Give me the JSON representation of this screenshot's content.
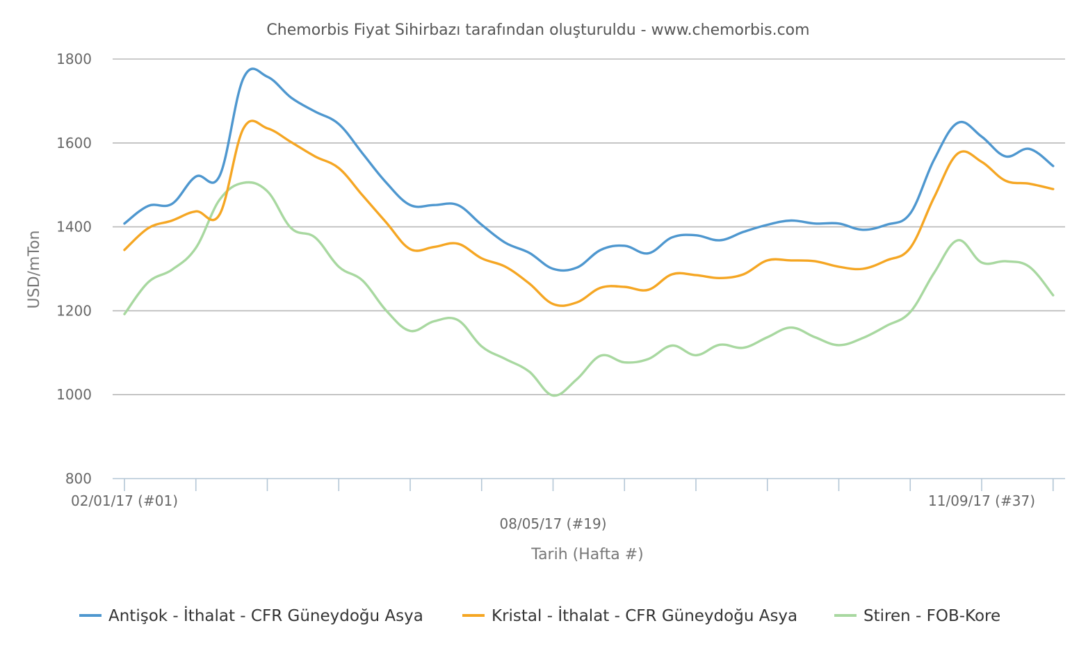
{
  "chart_data": {
    "type": "line",
    "title": "Chemorbis Fiyat Sihirbazı tarafından oluşturuldu - www.chemorbis.com",
    "xlabel": "Tarih (Hafta #)",
    "ylabel": "USD/mTon",
    "ylim": [
      800,
      1800
    ],
    "yticks": [
      800,
      1000,
      1200,
      1400,
      1600,
      1800
    ],
    "grid": true,
    "legend_position": "bottom",
    "x_tick_labels": [
      {
        "week": 1,
        "label": "02/01/17 (#01)",
        "row": 1
      },
      {
        "week": 19,
        "label": "08/05/17 (#19)",
        "row": 2
      },
      {
        "week": 37,
        "label": "11/09/17 (#37)",
        "row": 1
      }
    ],
    "weeks": [
      1,
      2,
      3,
      4,
      5,
      6,
      7,
      8,
      9,
      10,
      11,
      12,
      13,
      14,
      15,
      16,
      17,
      18,
      19,
      20,
      21,
      22,
      23,
      24,
      25,
      26,
      27,
      28,
      29,
      30,
      31,
      32,
      33,
      34,
      35,
      36,
      37,
      38,
      39,
      40
    ],
    "series": [
      {
        "name": "Antişok - İthalat - CFR Güneydoğu Asya",
        "color": "#4e97cf",
        "values": [
          1408,
          1450,
          1455,
          1520,
          1522,
          1755,
          1758,
          1708,
          1675,
          1645,
          1575,
          1505,
          1452,
          1452,
          1452,
          1405,
          1362,
          1338,
          1300,
          1303,
          1345,
          1355,
          1337,
          1375,
          1380,
          1368,
          1388,
          1405,
          1415,
          1408,
          1408,
          1393,
          1405,
          1432,
          1560,
          1648,
          1615,
          1568,
          1586,
          1545
        ]
      },
      {
        "name": "Kristal - İthalat - CFR Güneydoğu Asya",
        "color": "#f5a623",
        "values": [
          1345,
          1397,
          1415,
          1437,
          1430,
          1635,
          1635,
          1602,
          1568,
          1540,
          1475,
          1410,
          1347,
          1352,
          1360,
          1325,
          1305,
          1265,
          1216,
          1220,
          1255,
          1257,
          1250,
          1287,
          1285,
          1278,
          1287,
          1320,
          1320,
          1318,
          1305,
          1300,
          1320,
          1350,
          1470,
          1575,
          1555,
          1510,
          1503,
          1490
        ]
      },
      {
        "name": "Stiren - FOB-Kore",
        "color": "#a8d8a0",
        "values": [
          1192,
          1268,
          1298,
          1350,
          1465,
          1505,
          1485,
          1397,
          1375,
          1305,
          1272,
          1200,
          1152,
          1175,
          1178,
          1115,
          1085,
          1055,
          998,
          1037,
          1093,
          1077,
          1085,
          1117,
          1094,
          1119,
          1112,
          1137,
          1160,
          1137,
          1118,
          1135,
          1164,
          1197,
          1290,
          1368,
          1315,
          1318,
          1305,
          1237
        ]
      }
    ]
  }
}
